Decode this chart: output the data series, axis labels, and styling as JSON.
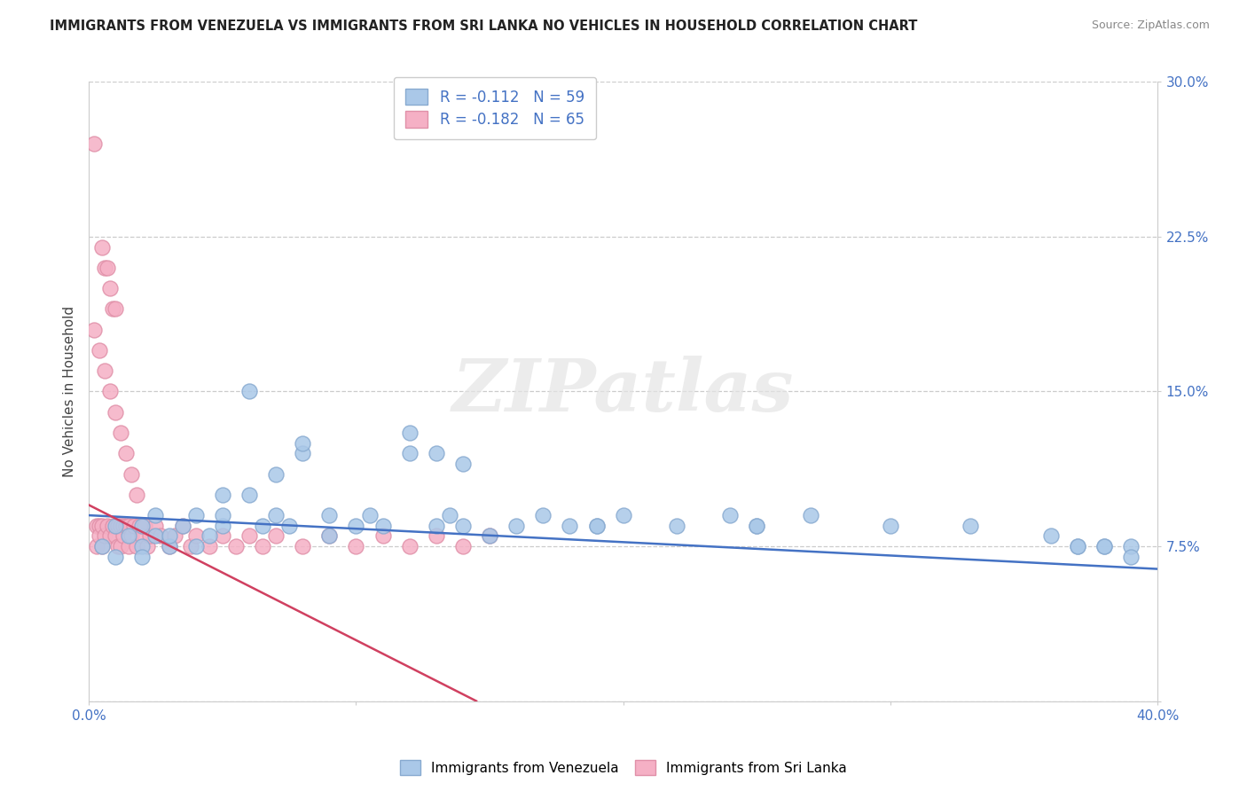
{
  "title": "IMMIGRANTS FROM VENEZUELA VS IMMIGRANTS FROM SRI LANKA NO VEHICLES IN HOUSEHOLD CORRELATION CHART",
  "source": "Source: ZipAtlas.com",
  "ylabel": "No Vehicles in Household",
  "xlim": [
    0.0,
    0.4
  ],
  "ylim": [
    0.0,
    0.3
  ],
  "xtick_vals": [
    0.0,
    0.1,
    0.2,
    0.3,
    0.4
  ],
  "xtick_labels_left": [
    "0.0%",
    "",
    "",
    "",
    ""
  ],
  "xtick_labels_right": [
    "",
    "",
    "",
    "",
    "40.0%"
  ],
  "ytick_vals": [
    0.0,
    0.075,
    0.15,
    0.225,
    0.3
  ],
  "ytick_labels": [
    "",
    "7.5%",
    "15.0%",
    "22.5%",
    "30.0%"
  ],
  "r_venezuela": -0.112,
  "n_venezuela": 59,
  "r_sri_lanka": -0.182,
  "n_sri_lanka": 65,
  "color_venezuela": "#aac8e8",
  "color_sri_lanka": "#f5b0c5",
  "color_venezuela_edge": "#88aad0",
  "color_sri_lanka_edge": "#e090a8",
  "trendline_color_venezuela": "#4472c4",
  "trendline_color_sri_lanka": "#d04060",
  "watermark": "ZIPatlas",
  "watermark_color": "#e5e5e5",
  "legend_label_1": "Immigrants from Venezuela",
  "legend_label_2": "Immigrants from Sri Lanka",
  "grid_color": "#cccccc",
  "axis_tick_color": "#4472c4",
  "title_color": "#222222",
  "source_color": "#888888",
  "ylabel_color": "#444444",
  "Venezuela_x": [
    0.005,
    0.01,
    0.01,
    0.015,
    0.02,
    0.02,
    0.02,
    0.025,
    0.025,
    0.03,
    0.03,
    0.035,
    0.04,
    0.04,
    0.045,
    0.05,
    0.05,
    0.06,
    0.065,
    0.07,
    0.075,
    0.08,
    0.09,
    0.09,
    0.1,
    0.105,
    0.11,
    0.12,
    0.13,
    0.135,
    0.14,
    0.15,
    0.16,
    0.17,
    0.18,
    0.19,
    0.2,
    0.22,
    0.24,
    0.25,
    0.27,
    0.3,
    0.33,
    0.36,
    0.37,
    0.38,
    0.39,
    0.39,
    0.05,
    0.06,
    0.07,
    0.08,
    0.12,
    0.13,
    0.14,
    0.19,
    0.25,
    0.37,
    0.38
  ],
  "Venezuela_y": [
    0.075,
    0.085,
    0.07,
    0.08,
    0.075,
    0.085,
    0.07,
    0.08,
    0.09,
    0.075,
    0.08,
    0.085,
    0.09,
    0.075,
    0.08,
    0.085,
    0.09,
    0.15,
    0.085,
    0.09,
    0.085,
    0.12,
    0.09,
    0.08,
    0.085,
    0.09,
    0.085,
    0.13,
    0.085,
    0.09,
    0.085,
    0.08,
    0.085,
    0.09,
    0.085,
    0.085,
    0.09,
    0.085,
    0.09,
    0.085,
    0.09,
    0.085,
    0.085,
    0.08,
    0.075,
    0.075,
    0.075,
    0.07,
    0.1,
    0.1,
    0.11,
    0.125,
    0.12,
    0.12,
    0.115,
    0.085,
    0.085,
    0.075,
    0.075
  ],
  "SriLanka_x": [
    0.002,
    0.003,
    0.003,
    0.004,
    0.004,
    0.005,
    0.005,
    0.005,
    0.006,
    0.006,
    0.007,
    0.007,
    0.008,
    0.008,
    0.009,
    0.009,
    0.01,
    0.01,
    0.011,
    0.011,
    0.012,
    0.012,
    0.013,
    0.013,
    0.014,
    0.015,
    0.015,
    0.016,
    0.017,
    0.018,
    0.019,
    0.02,
    0.021,
    0.022,
    0.023,
    0.025,
    0.027,
    0.03,
    0.032,
    0.035,
    0.038,
    0.04,
    0.045,
    0.05,
    0.055,
    0.06,
    0.065,
    0.07,
    0.08,
    0.09,
    0.1,
    0.11,
    0.12,
    0.13,
    0.14,
    0.15,
    0.002,
    0.004,
    0.006,
    0.008,
    0.01,
    0.012,
    0.014,
    0.016,
    0.018
  ],
  "SriLanka_y": [
    0.27,
    0.085,
    0.075,
    0.085,
    0.08,
    0.22,
    0.085,
    0.075,
    0.21,
    0.08,
    0.21,
    0.085,
    0.2,
    0.08,
    0.19,
    0.085,
    0.19,
    0.08,
    0.085,
    0.075,
    0.085,
    0.075,
    0.085,
    0.08,
    0.085,
    0.085,
    0.075,
    0.08,
    0.085,
    0.075,
    0.085,
    0.08,
    0.085,
    0.075,
    0.08,
    0.085,
    0.08,
    0.075,
    0.08,
    0.085,
    0.075,
    0.08,
    0.075,
    0.08,
    0.075,
    0.08,
    0.075,
    0.08,
    0.075,
    0.08,
    0.075,
    0.08,
    0.075,
    0.08,
    0.075,
    0.08,
    0.18,
    0.17,
    0.16,
    0.15,
    0.14,
    0.13,
    0.12,
    0.11,
    0.1
  ]
}
